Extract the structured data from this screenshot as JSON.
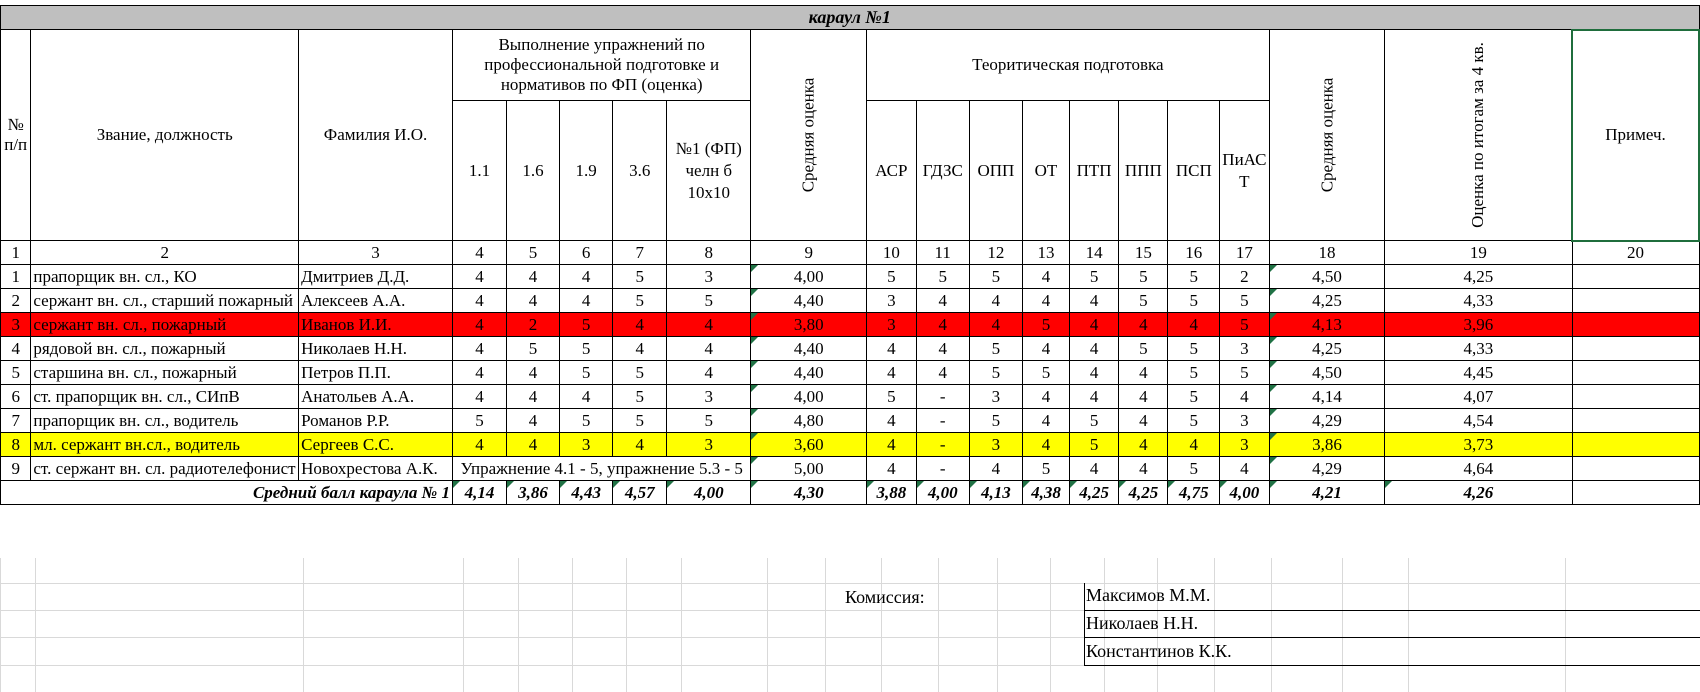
{
  "title": "караул №1",
  "headers": {
    "num": "№ п/п",
    "rank": "Звание, должность",
    "name": "Фамилия И.О.",
    "exercises_group": "Выполнение упражнений по профессиональной подготовке  и нормативов по ФП (оценка)",
    "exercises": [
      "1.1",
      "1.6",
      "1.9",
      "3.6",
      "№1 (ФП) челн б 10х10"
    ],
    "avg1": "Средняя оценка",
    "theory_group": "Теоритическая подготовка",
    "theory": [
      "АСР",
      "ГДЗС",
      "ОПП",
      "ОТ",
      "ПТП",
      "ППП",
      "ПСП",
      "ПиАСТ"
    ],
    "avg2": "Средняя оценка",
    "q4": "Оценка по итогам за 4 кв.",
    "note": "Примеч."
  },
  "col_numbers": [
    "1",
    "2",
    "3",
    "4",
    "5",
    "6",
    "7",
    "8",
    "9",
    "10",
    "11",
    "12",
    "13",
    "14",
    "15",
    "16",
    "17",
    "18",
    "19",
    "20"
  ],
  "rows": [
    {
      "n": "1",
      "rank": "прапорщик вн. сл., КО",
      "name": "Дмитриев Д.Д.",
      "ex": [
        "4",
        "4",
        "4",
        "5",
        "3"
      ],
      "avg1": "4,00",
      "th": [
        "5",
        "5",
        "5",
        "4",
        "5",
        "5",
        "5",
        "2"
      ],
      "avg2": "4,50",
      "q4": "4,25",
      "hl": ""
    },
    {
      "n": "2",
      "rank": "сержант вн. сл., старший пожарный",
      "name": "Алексеев А.А.",
      "ex": [
        "4",
        "4",
        "4",
        "5",
        "5"
      ],
      "avg1": "4,40",
      "th": [
        "3",
        "4",
        "4",
        "4",
        "4",
        "5",
        "5",
        "5"
      ],
      "avg2": "4,25",
      "q4": "4,33",
      "hl": ""
    },
    {
      "n": "3",
      "rank": "сержант вн. сл., пожарный",
      "name": "Иванов И.И.",
      "ex": [
        "4",
        "2",
        "5",
        "4",
        "4"
      ],
      "avg1": "3,80",
      "th": [
        "3",
        "4",
        "4",
        "5",
        "4",
        "4",
        "4",
        "5"
      ],
      "avg2": "4,13",
      "q4": "3,96",
      "hl": "red"
    },
    {
      "n": "4",
      "rank": "рядовой вн. сл., пожарный",
      "name": "Николаев Н.Н.",
      "ex": [
        "4",
        "5",
        "5",
        "4",
        "4"
      ],
      "avg1": "4,40",
      "th": [
        "4",
        "4",
        "5",
        "4",
        "4",
        "5",
        "5",
        "3"
      ],
      "avg2": "4,25",
      "q4": "4,33",
      "hl": ""
    },
    {
      "n": "5",
      "rank": "старшина вн. сл., пожарный",
      "name": "Петров П.П.",
      "ex": [
        "4",
        "4",
        "5",
        "5",
        "4"
      ],
      "avg1": "4,40",
      "th": [
        "4",
        "4",
        "5",
        "5",
        "4",
        "4",
        "5",
        "5"
      ],
      "avg2": "4,50",
      "q4": "4,45",
      "hl": ""
    },
    {
      "n": "6",
      "rank": "ст. прапорщик вн. сл., СИпВ",
      "name": "Анатольев А.А.",
      "ex": [
        "4",
        "4",
        "4",
        "5",
        "3"
      ],
      "avg1": "4,00",
      "th": [
        "5",
        "-",
        "3",
        "4",
        "4",
        "4",
        "5",
        "4"
      ],
      "avg2": "4,14",
      "q4": "4,07",
      "hl": ""
    },
    {
      "n": "7",
      "rank": "прапорщик вн. сл., водитель",
      "name": "Романов Р.Р.",
      "ex": [
        "5",
        "4",
        "5",
        "5",
        "5"
      ],
      "avg1": "4,80",
      "th": [
        "4",
        "-",
        "5",
        "4",
        "5",
        "4",
        "5",
        "3"
      ],
      "avg2": "4,29",
      "q4": "4,54",
      "hl": ""
    },
    {
      "n": "8",
      "rank": "мл. сержант вн.сл., водитель",
      "name": "Сергеев С.С.",
      "ex": [
        "4",
        "4",
        "3",
        "4",
        "3"
      ],
      "avg1": "3,60",
      "th": [
        "4",
        "-",
        "3",
        "4",
        "5",
        "4",
        "4",
        "3"
      ],
      "avg2": "3,86",
      "q4": "3,73",
      "hl": "yellow"
    },
    {
      "n": "9",
      "rank": "ст. сержант вн. сл. радиотелефонист",
      "name": "Новохрестова А.К.",
      "ex_merged": "Упражнение 4.1 - 5, упражнение 5.3 - 5",
      "avg1": "5,00",
      "th": [
        "4",
        "-",
        "4",
        "5",
        "4",
        "4",
        "5",
        "4"
      ],
      "avg2": "4,29",
      "q4": "4,64",
      "hl": ""
    }
  ],
  "summary": {
    "label": "Средний балл  караула № 1",
    "ex": [
      "4,14",
      "3,86",
      "4,43",
      "4,57",
      "4,00"
    ],
    "avg1": "4,30",
    "th": [
      "3,88",
      "4,00",
      "4,13",
      "4,38",
      "4,25",
      "4,25",
      "4,75",
      "4,00"
    ],
    "avg2": "4,21",
    "q4": "4,26"
  },
  "commission": {
    "label": "Комиссия:",
    "members": [
      "Максимов М.М.",
      "Николаев Н.Н.",
      "Константинов К.К."
    ]
  }
}
